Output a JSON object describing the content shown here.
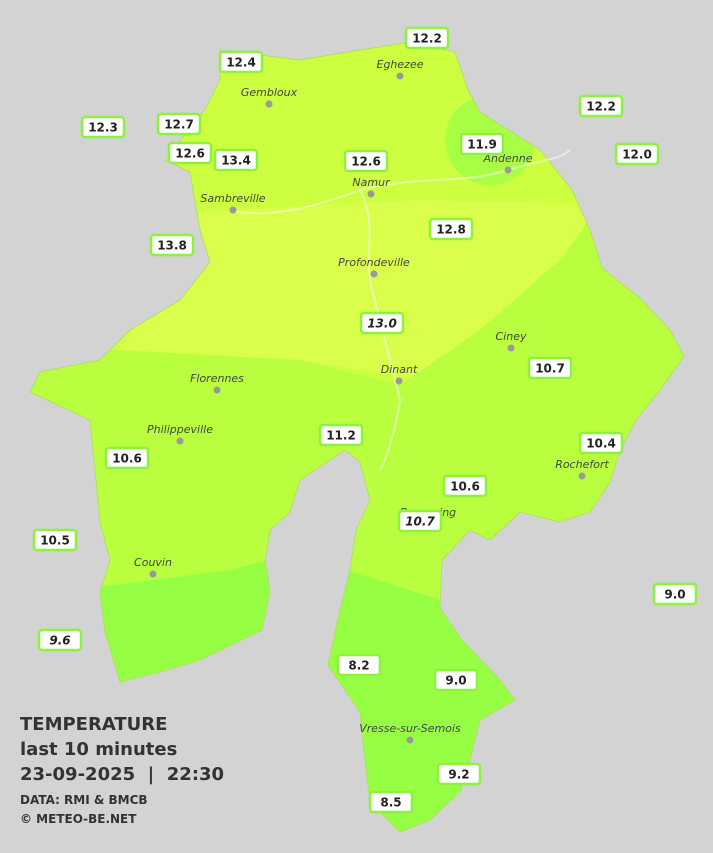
{
  "title": "TEMPERATURE",
  "subtitle": "last 10 minutes",
  "datetime": "23-09-2025  |  22:30",
  "source": "DATA: RMI & BMCB",
  "copyright": "© METEO-BE.NET",
  "cities": [
    "Eghezee",
    "Gembloux",
    "Andenne",
    "Namur",
    "Sambreville",
    "Profondeville",
    "Ciney",
    "Dinant",
    "Florennes",
    "Philippeville",
    "Rochefort",
    "Beauraing",
    "Couvin",
    "Vresse-sur-Semois"
  ],
  "stations": [
    {
      "label": "12.2",
      "italic": false
    },
    {
      "label": "12.4",
      "italic": false
    },
    {
      "label": "12.3",
      "italic": false
    },
    {
      "label": "12.7",
      "italic": false
    },
    {
      "label": "12.6",
      "italic": false
    },
    {
      "label": "13.4",
      "italic": false
    },
    {
      "label": "12.6",
      "italic": false
    },
    {
      "label": "11.9",
      "italic": false
    },
    {
      "label": "12.2",
      "italic": false
    },
    {
      "label": "12.0",
      "italic": false
    },
    {
      "label": "13.8",
      "italic": false
    },
    {
      "label": "12.8",
      "italic": false
    },
    {
      "label": "13.0",
      "italic": true
    },
    {
      "label": "10.7",
      "italic": false
    },
    {
      "label": "11.2",
      "italic": false
    },
    {
      "label": "10.4",
      "italic": false
    },
    {
      "label": "10.6",
      "italic": false
    },
    {
      "label": "10.6",
      "italic": false
    },
    {
      "label": "10.7",
      "italic": true
    },
    {
      "label": "10.5",
      "italic": false
    },
    {
      "label": "9.0",
      "italic": false
    },
    {
      "label": "9.6",
      "italic": true
    },
    {
      "label": "8.2",
      "italic": false
    },
    {
      "label": "9.0",
      "italic": false
    },
    {
      "label": "9.2",
      "italic": false
    },
    {
      "label": "8.5",
      "italic": false
    }
  ]
}
